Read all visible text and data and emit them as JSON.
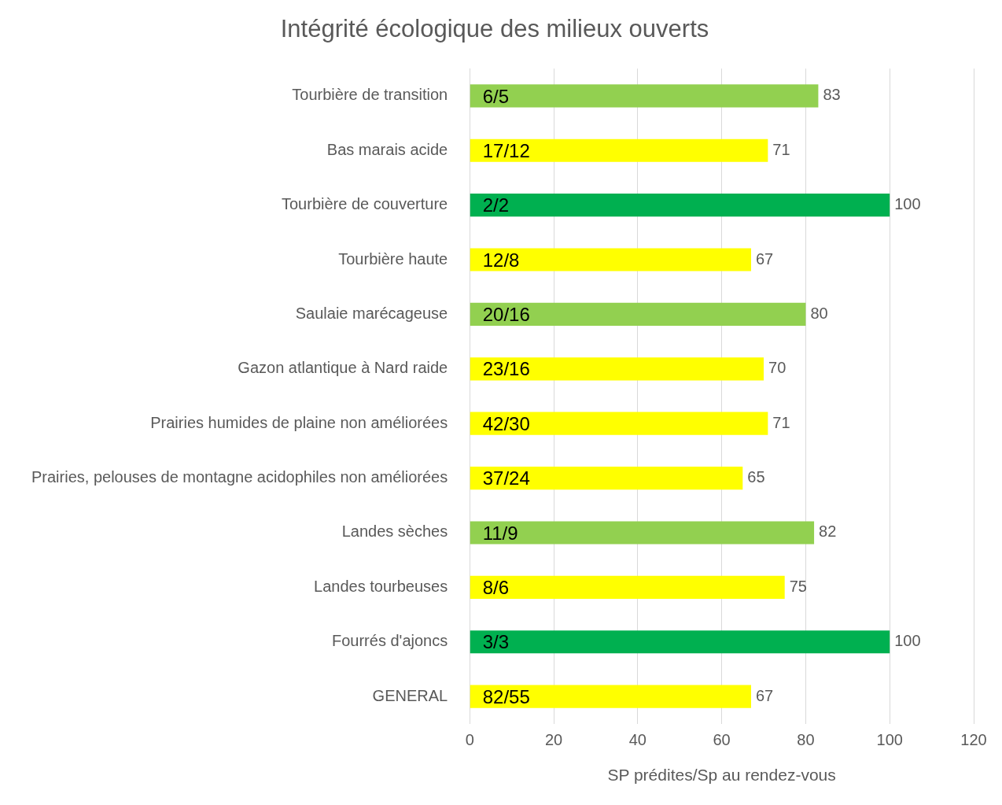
{
  "chart_data": {
    "type": "bar",
    "orientation": "horizontal",
    "title": "Intégrité écologique des milieux ouverts",
    "xlabel": "SP prédites/Sp au rendez-vous",
    "categories": [
      "Tourbière de transition",
      "Bas marais acide",
      "Tourbière de couverture",
      "Tourbière haute",
      "Saulaie marécageuse",
      "Gazon atlantique à Nard raide",
      "Prairies humides de plaine non améliorées",
      "Prairies, pelouses de montagne acidophiles non améliorées",
      "Landes sèches",
      "Landes tourbeuses",
      "Fourrés d'ajoncs",
      "GENERAL"
    ],
    "values": [
      83,
      71,
      100,
      67,
      80,
      70,
      71,
      65,
      82,
      75,
      100,
      67
    ],
    "colors": [
      "#92d050",
      "#ffff00",
      "#00b050",
      "#ffff00",
      "#92d050",
      "#ffff00",
      "#ffff00",
      "#ffff00",
      "#92d050",
      "#ffff00",
      "#00b050",
      "#ffff00"
    ],
    "xlim": [
      0,
      120
    ],
    "xticks": [
      0,
      20,
      40,
      60,
      80,
      100,
      120
    ],
    "grid": "x",
    "legend": false,
    "data_labels": true,
    "annotations": [
      "6/5",
      "17/12",
      "2/2",
      "12/8",
      "20/16",
      "23/16",
      "42/30",
      "37/24",
      "11/9",
      "8/6",
      "3/3",
      "82/55"
    ]
  }
}
